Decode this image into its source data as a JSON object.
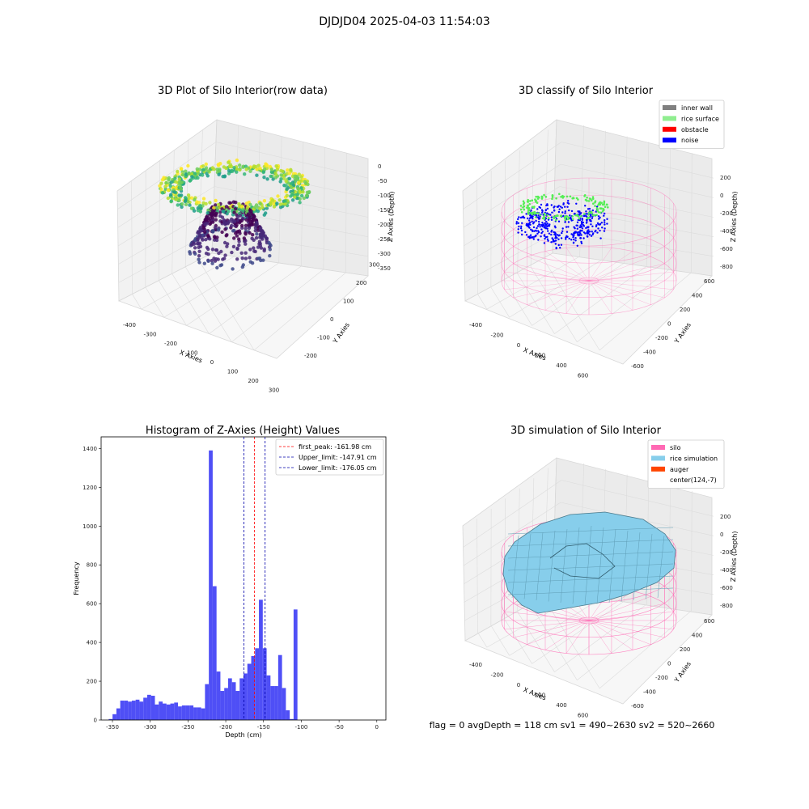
{
  "suptitle": "DJDJD04 2025-04-03 11:54:03",
  "footer": "flag = 0     avgDepth = 118 cm  sv1 = 490~2630  sv2 = 520~2660",
  "chart_data": [
    {
      "type": "scatter",
      "title": "3D Plot of Silo Interior(row data)",
      "xlabel": "X Axies",
      "ylabel": "Y Axies",
      "zlabel": "Z Axies (Depth)",
      "xticks": [
        "-400",
        "-300",
        "-200",
        "-100",
        "0",
        "100",
        "200",
        "300"
      ],
      "yticks": [
        "-200",
        "-100",
        "0",
        "100",
        "200",
        "300"
      ],
      "zticks": [
        "0",
        "-50",
        "-100",
        "-150",
        "-200",
        "-250",
        "-300",
        "-350"
      ],
      "colormap": "viridis"
    },
    {
      "type": "scatter",
      "title": "3D classify of Silo Interior",
      "xlabel": "X Axies",
      "ylabel": "Y Axies",
      "zlabel": "Z Axies (Depth)",
      "xticks": [
        "-400",
        "-200",
        "0",
        "200",
        "400",
        "600"
      ],
      "yticks": [
        "-600",
        "-400",
        "-200",
        "0",
        "200",
        "400",
        "600"
      ],
      "zticks": [
        "200",
        "0",
        "-200",
        "-400",
        "-600",
        "-800"
      ],
      "legend": [
        {
          "label": "inner wall",
          "color": "#808080"
        },
        {
          "label": "rice surface",
          "color": "#90ee90"
        },
        {
          "label": "obstacle",
          "color": "#ff0000"
        },
        {
          "label": "noise",
          "color": "#0000ff"
        }
      ],
      "legend_position": "top-right"
    },
    {
      "type": "bar",
      "title": "Histogram of Z-Axies (Height) Values",
      "xlabel": "Depth (cm)",
      "ylabel": "Frequency",
      "xlim": [
        -365,
        12
      ],
      "ylim": [
        0,
        1460
      ],
      "xticks": [
        -350,
        -300,
        -250,
        -200,
        -150,
        -100,
        -50,
        0
      ],
      "yticks": [
        0,
        200,
        400,
        600,
        800,
        1000,
        1200,
        1400
      ],
      "bar_color": "#4040f5",
      "bin_width": 5.1,
      "bin_start": -355,
      "values": [
        5,
        30,
        60,
        100,
        100,
        95,
        100,
        105,
        95,
        115,
        130,
        125,
        80,
        95,
        85,
        80,
        85,
        90,
        70,
        75,
        75,
        75,
        65,
        65,
        60,
        185,
        1390,
        690,
        250,
        150,
        165,
        215,
        195,
        150,
        215,
        240,
        290,
        330,
        370,
        620,
        370,
        230,
        175,
        175,
        335,
        165,
        50,
        5,
        570
      ],
      "vlines": [
        {
          "label": "first_peak: -161.98 cm",
          "x": -161.98,
          "color": "#ff0000"
        },
        {
          "label": "Upper_limit: -147.91 cm",
          "x": -147.91,
          "color": "#0000aa"
        },
        {
          "label": "Lower_limit: -176.05 cm",
          "x": -176.05,
          "color": "#0000aa"
        }
      ],
      "legend_position": "top-right"
    },
    {
      "type": "surface",
      "title": "3D simulation of Silo Interior",
      "xlabel": "X Axies",
      "ylabel": "Y Axies",
      "zlabel": "Z Axies (Depth)",
      "xticks": [
        "-400",
        "-200",
        "0",
        "200",
        "400",
        "600"
      ],
      "yticks": [
        "-600",
        "-400",
        "-200",
        "0",
        "200",
        "400",
        "600"
      ],
      "zticks": [
        "200",
        "0",
        "-200",
        "-400",
        "-600",
        "-800"
      ],
      "legend": [
        {
          "label": "silo",
          "color": "#ff69b4"
        },
        {
          "label": "rice simulation",
          "color": "#87ceeb"
        },
        {
          "label": "auger",
          "color": "#ff4500"
        },
        {
          "label": "center(124,-7)",
          "color": "none"
        }
      ],
      "legend_position": "top-right"
    }
  ]
}
